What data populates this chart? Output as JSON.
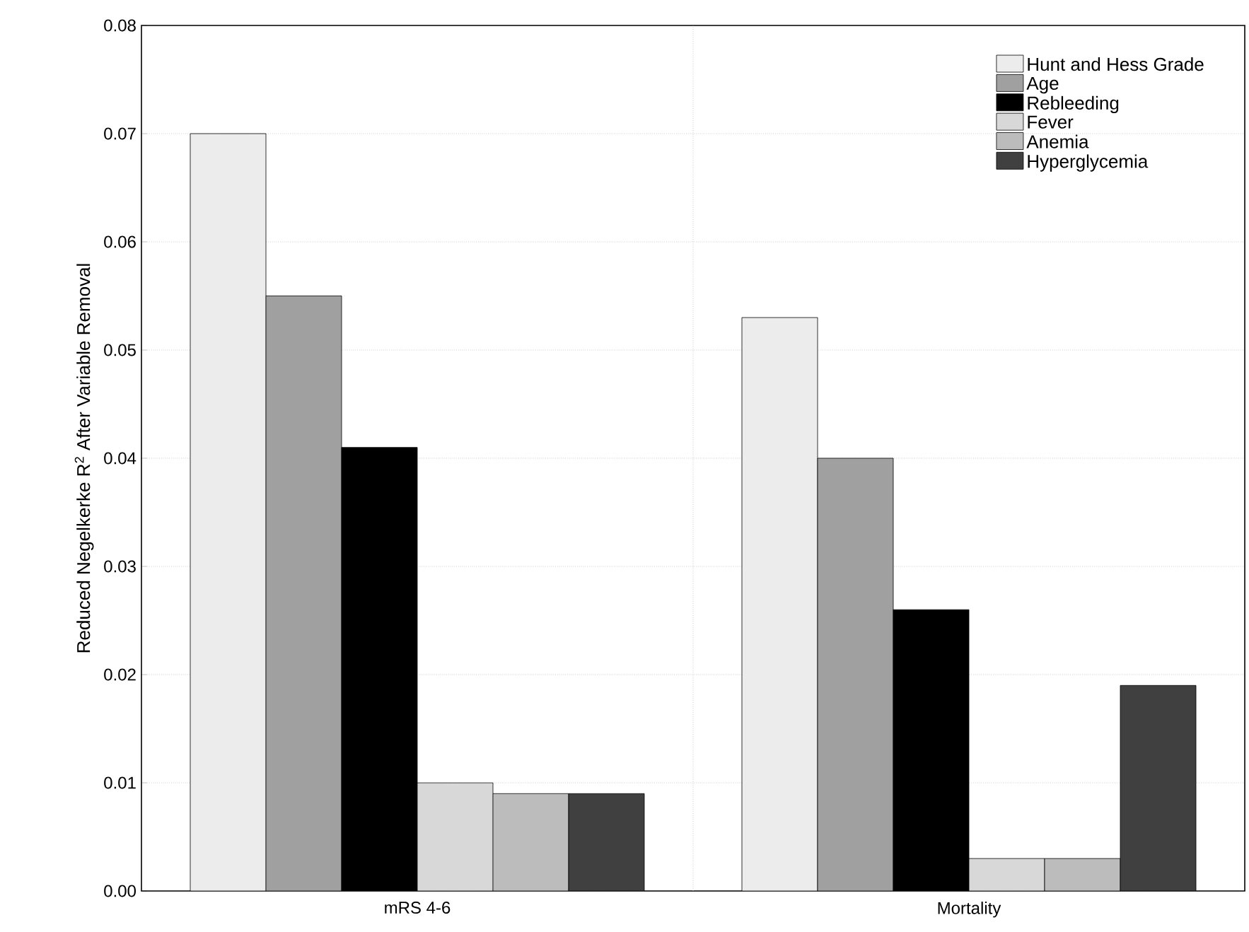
{
  "chart_data": {
    "type": "bar",
    "ylabel": "Reduced Negelkerke R$^{2}$ After Variable Removal",
    "categories": [
      "mRS 4-6",
      "Mortality"
    ],
    "series": [
      {
        "name": "Hunt and Hess Grade",
        "color": "#ececec",
        "values": [
          0.07,
          0.053
        ]
      },
      {
        "name": "Age",
        "color": "#a0a0a0",
        "values": [
          0.055,
          0.04
        ]
      },
      {
        "name": "Rebleeding",
        "color": "#000000",
        "values": [
          0.041,
          0.026
        ]
      },
      {
        "name": "Fever",
        "color": "#d8d8d8",
        "values": [
          0.01,
          0.003
        ]
      },
      {
        "name": "Anemia",
        "color": "#bcbcbc",
        "values": [
          0.009,
          0.003
        ]
      },
      {
        "name": "Hyperglycemia",
        "color": "#404040",
        "values": [
          0.009,
          0.019
        ]
      }
    ],
    "ylim": [
      0,
      0.08
    ],
    "yticks": [
      {
        "value": 0,
        "label": "0.00"
      },
      {
        "value": 0.01,
        "label": "0.01"
      },
      {
        "value": 0.02,
        "label": "0.02"
      },
      {
        "value": 0.03,
        "label": "0.03"
      },
      {
        "value": 0.04,
        "label": "0.04"
      },
      {
        "value": 0.05,
        "label": "0.05"
      },
      {
        "value": 0.06,
        "label": "0.06"
      },
      {
        "value": 0.07,
        "label": "0.07"
      },
      {
        "value": 0.08,
        "label": "0.08"
      }
    ],
    "grid": true,
    "legend": "top right"
  }
}
